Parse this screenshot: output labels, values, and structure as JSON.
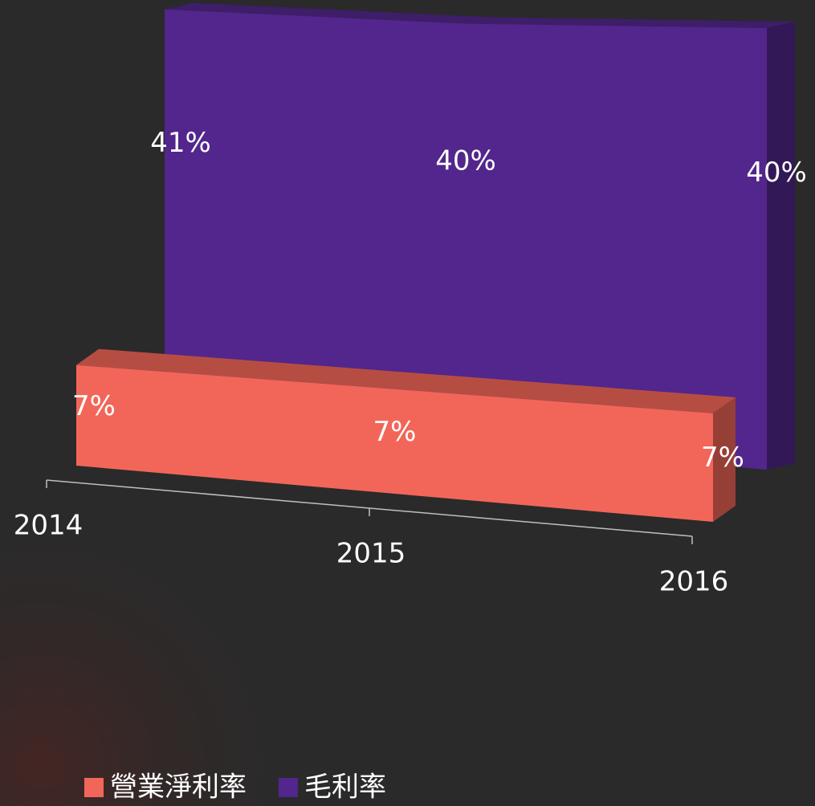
{
  "chart_data": {
    "type": "area3d",
    "categories": [
      "2014",
      "2015",
      "2016"
    ],
    "series": [
      {
        "name": "營業淨利率",
        "color": "#f26659",
        "values": [
          7,
          7,
          7
        ],
        "value_labels": [
          "7%",
          "7%",
          "7%"
        ]
      },
      {
        "name": "毛利率",
        "color": "#52268c",
        "values": [
          41,
          40,
          40
        ],
        "value_labels": [
          "41%",
          "40%",
          "40%"
        ]
      }
    ],
    "legend": "bottom"
  }
}
